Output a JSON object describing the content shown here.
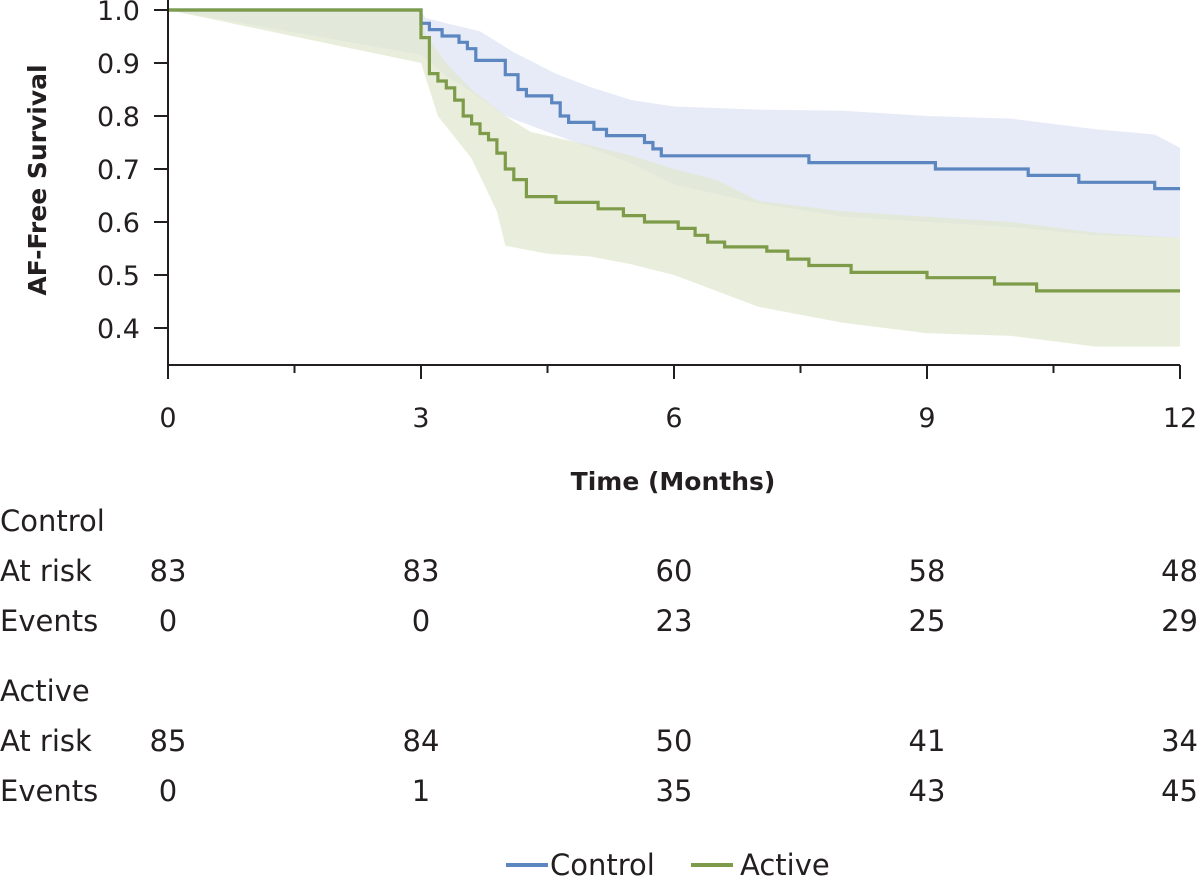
{
  "chart_data": {
    "type": "line",
    "subtype": "kaplan-meier",
    "title": "",
    "xlabel": "Time (Months)",
    "ylabel": "AF-Free Survival",
    "xlim": [
      0,
      12
    ],
    "ylim": [
      0.4,
      1.0
    ],
    "x_ticks": [
      0,
      3,
      6,
      9,
      12
    ],
    "x_minor_ticks": [
      1.5,
      4.5,
      7.5,
      10.5
    ],
    "y_ticks": [
      "1.0",
      "0.9",
      "0.8",
      "0.7",
      "0.6",
      "0.5",
      "0.4"
    ],
    "grid": false,
    "legend": "bottom-center",
    "series": [
      {
        "name": "Control",
        "color": "#5b86bf",
        "band_color": "#e3e8f6",
        "steps": [
          [
            0,
            1.0
          ],
          [
            3.0,
            0.975
          ],
          [
            3.1,
            0.963
          ],
          [
            3.25,
            0.951
          ],
          [
            3.45,
            0.939
          ],
          [
            3.55,
            0.927
          ],
          [
            3.65,
            0.905
          ],
          [
            3.9,
            0.905
          ],
          [
            4.0,
            0.878
          ],
          [
            4.15,
            0.85
          ],
          [
            4.25,
            0.838
          ],
          [
            4.55,
            0.825
          ],
          [
            4.65,
            0.8
          ],
          [
            4.75,
            0.788
          ],
          [
            5.05,
            0.775
          ],
          [
            5.2,
            0.763
          ],
          [
            5.65,
            0.75
          ],
          [
            5.75,
            0.738
          ],
          [
            5.85,
            0.725
          ],
          [
            6.1,
            0.725
          ],
          [
            7.6,
            0.712
          ],
          [
            9.1,
            0.7
          ],
          [
            10.2,
            0.688
          ],
          [
            10.8,
            0.675
          ],
          [
            11.7,
            0.663
          ],
          [
            12.0,
            0.663
          ]
        ],
        "ci_upper": [
          [
            0,
            1.0
          ],
          [
            3.0,
            1.0
          ],
          [
            3.05,
            0.985
          ],
          [
            3.3,
            0.975
          ],
          [
            3.7,
            0.96
          ],
          [
            4.1,
            0.92
          ],
          [
            4.6,
            0.88
          ],
          [
            5.0,
            0.855
          ],
          [
            5.5,
            0.83
          ],
          [
            6.0,
            0.818
          ],
          [
            7.0,
            0.812
          ],
          [
            8.0,
            0.81
          ],
          [
            9.0,
            0.8
          ],
          [
            10.0,
            0.795
          ],
          [
            11.0,
            0.775
          ],
          [
            11.7,
            0.765
          ],
          [
            12.0,
            0.74
          ]
        ],
        "ci_lower": [
          [
            0,
            1.0
          ],
          [
            3.0,
            0.915
          ],
          [
            3.3,
            0.875
          ],
          [
            3.6,
            0.845
          ],
          [
            4.0,
            0.8
          ],
          [
            4.5,
            0.77
          ],
          [
            5.0,
            0.74
          ],
          [
            5.5,
            0.71
          ],
          [
            6.0,
            0.67
          ],
          [
            7.0,
            0.635
          ],
          [
            8.0,
            0.61
          ],
          [
            9.0,
            0.6
          ],
          [
            10.0,
            0.59
          ],
          [
            11.0,
            0.575
          ],
          [
            12.0,
            0.57
          ]
        ]
      },
      {
        "name": "Active",
        "color": "#7d9b49",
        "band_color": "#e1e8d0",
        "steps": [
          [
            0,
            1.0
          ],
          [
            3.0,
            0.948
          ],
          [
            3.1,
            0.88
          ],
          [
            3.2,
            0.866
          ],
          [
            3.3,
            0.853
          ],
          [
            3.4,
            0.83
          ],
          [
            3.5,
            0.8
          ],
          [
            3.6,
            0.785
          ],
          [
            3.7,
            0.767
          ],
          [
            3.8,
            0.755
          ],
          [
            3.9,
            0.73
          ],
          [
            4.0,
            0.7
          ],
          [
            4.1,
            0.68
          ],
          [
            4.25,
            0.648
          ],
          [
            4.6,
            0.637
          ],
          [
            4.9,
            0.637
          ],
          [
            5.1,
            0.625
          ],
          [
            5.4,
            0.612
          ],
          [
            5.65,
            0.6
          ],
          [
            6.05,
            0.588
          ],
          [
            6.25,
            0.575
          ],
          [
            6.4,
            0.562
          ],
          [
            6.6,
            0.553
          ],
          [
            7.1,
            0.545
          ],
          [
            7.35,
            0.53
          ],
          [
            7.6,
            0.518
          ],
          [
            8.1,
            0.505
          ],
          [
            9.0,
            0.495
          ],
          [
            9.8,
            0.483
          ],
          [
            10.3,
            0.47
          ],
          [
            12.0,
            0.47
          ]
        ],
        "ci_upper": [
          [
            0,
            1.0
          ],
          [
            3.0,
            1.0
          ],
          [
            3.05,
            0.955
          ],
          [
            3.3,
            0.9
          ],
          [
            3.6,
            0.85
          ],
          [
            4.0,
            0.8
          ],
          [
            4.3,
            0.77
          ],
          [
            5.0,
            0.745
          ],
          [
            5.5,
            0.725
          ],
          [
            6.0,
            0.7
          ],
          [
            6.5,
            0.68
          ],
          [
            7.0,
            0.64
          ],
          [
            8.0,
            0.62
          ],
          [
            9.0,
            0.61
          ],
          [
            10.0,
            0.6
          ],
          [
            11.0,
            0.58
          ],
          [
            12.0,
            0.57
          ]
        ],
        "ci_lower": [
          [
            0,
            1.0
          ],
          [
            3.0,
            0.9
          ],
          [
            3.2,
            0.8
          ],
          [
            3.6,
            0.72
          ],
          [
            3.9,
            0.62
          ],
          [
            4.0,
            0.555
          ],
          [
            4.5,
            0.54
          ],
          [
            5.0,
            0.535
          ],
          [
            5.5,
            0.52
          ],
          [
            6.0,
            0.5
          ],
          [
            6.5,
            0.47
          ],
          [
            7.0,
            0.44
          ],
          [
            8.0,
            0.41
          ],
          [
            9.0,
            0.39
          ],
          [
            10.0,
            0.385
          ],
          [
            11.0,
            0.365
          ],
          [
            12.0,
            0.365
          ]
        ]
      }
    ]
  },
  "risk_table": {
    "groups": [
      {
        "label": "Control",
        "rows": [
          {
            "label": "At risk",
            "values": [
              "83",
              "83",
              "60",
              "58",
              "48"
            ]
          },
          {
            "label": "Events",
            "values": [
              "0",
              "0",
              "23",
              "25",
              "29"
            ]
          }
        ]
      },
      {
        "label": "Active",
        "rows": [
          {
            "label": "At risk",
            "values": [
              "85",
              "84",
              "50",
              "41",
              "34"
            ]
          },
          {
            "label": "Events",
            "values": [
              "0",
              "1",
              "35",
              "43",
              "45"
            ]
          }
        ]
      }
    ]
  },
  "legend": {
    "items": [
      {
        "label": "Control",
        "color": "#5b86bf"
      },
      {
        "label": "Active",
        "color": "#7d9b49"
      }
    ]
  }
}
